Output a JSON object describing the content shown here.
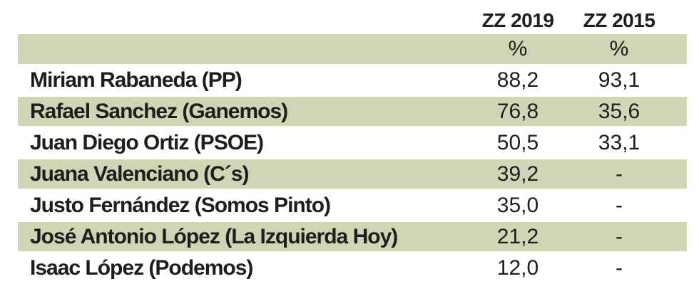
{
  "table": {
    "columns": [
      "ZZ 2019",
      "ZZ 2015"
    ],
    "unit_row": [
      "%",
      "%"
    ],
    "rows": [
      {
        "name": "Miriam Rabaneda (PP)",
        "v2019": "88,2",
        "v2015": "93,1"
      },
      {
        "name": "Rafael Sanchez (Ganemos)",
        "v2019": "76,8",
        "v2015": "35,6"
      },
      {
        "name": "Juan Diego Ortiz (PSOE)",
        "v2019": "50,5",
        "v2015": "33,1"
      },
      {
        "name": "Juana Valenciano (C´s)",
        "v2019": "39,2",
        "v2015": "-"
      },
      {
        "name": "Justo Fernández (Somos Pinto)",
        "v2019": "35,0",
        "v2015": "-"
      },
      {
        "name": "José Antonio López (La Izquierda Hoy)",
        "v2019": "21,2",
        "v2015": "-"
      },
      {
        "name": "Isaac López (Podemos)",
        "v2019": "12,0",
        "v2015": "-"
      }
    ],
    "colors": {
      "band_green": "#d2d4b6",
      "text": "#1e1e1c",
      "background": "#ffffff"
    }
  },
  "chart_data": {
    "type": "table",
    "categories": [
      "Miriam Rabaneda (PP)",
      "Rafael Sanchez (Ganemos)",
      "Juan Diego Ortiz (PSOE)",
      "Juana Valenciano (C´s)",
      "Justo Fernández (Somos Pinto)",
      "José Antonio López (La Izquierda Hoy)",
      "Isaac López (Podemos)"
    ],
    "series": [
      {
        "name": "ZZ 2019",
        "unit": "%",
        "values": [
          88.2,
          76.8,
          50.5,
          39.2,
          35.0,
          21.2,
          12.0
        ]
      },
      {
        "name": "ZZ 2015",
        "unit": "%",
        "values": [
          93.1,
          35.6,
          33.1,
          null,
          null,
          null,
          null
        ]
      }
    ],
    "missing_value_marker": "-",
    "layout": {
      "zebra_striping": true,
      "stripe_color": "#d2d4b6",
      "value_alignment": "center",
      "name_alignment": "left"
    }
  }
}
